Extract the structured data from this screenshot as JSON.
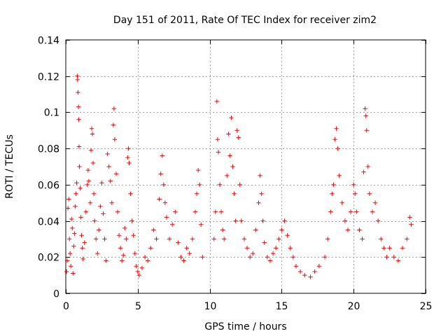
{
  "chart_data": {
    "type": "scatter",
    "title": "Day 151 of 2011, Rate Of TEC Index for receiver zim2",
    "xlabel": "GPS time / hours",
    "ylabel": "ROTI / TECUs",
    "xlim": [
      0,
      25
    ],
    "ylim": [
      0,
      0.14
    ],
    "xticks": [
      0,
      5,
      10,
      15,
      20,
      25
    ],
    "xtick_labels": [
      "0",
      "5",
      "10",
      "15",
      "20",
      "25"
    ],
    "yticks": [
      0,
      0.02,
      0.04,
      0.06,
      0.08,
      0.1,
      0.12,
      0.14
    ],
    "ytick_labels": [
      "0",
      "0.02",
      "0.04",
      "0.06",
      "0.08",
      "0.1",
      "0.12",
      "0.14"
    ],
    "grid": true,
    "marker": "+",
    "color": "#ff0000",
    "series": [
      {
        "name": "ROTI",
        "points": [
          [
            0.05,
            0.012
          ],
          [
            0.1,
            0.018
          ],
          [
            0.15,
            0.047
          ],
          [
            0.2,
            0.052
          ],
          [
            0.25,
            0.03
          ],
          [
            0.3,
            0.022
          ],
          [
            0.35,
            0.015
          ],
          [
            0.4,
            0.041
          ],
          [
            0.45,
            0.036
          ],
          [
            0.5,
            0.011
          ],
          [
            0.55,
            0.026
          ],
          [
            0.6,
            0.033
          ],
          [
            0.65,
            0.048
          ],
          [
            0.7,
            0.055
          ],
          [
            0.75,
            0.061
          ],
          [
            0.8,
            0.12
          ],
          [
            0.82,
            0.118
          ],
          [
            0.85,
            0.111
          ],
          [
            0.88,
            0.103
          ],
          [
            0.9,
            0.096
          ],
          [
            0.92,
            0.081
          ],
          [
            0.95,
            0.07
          ],
          [
            1.0,
            0.058
          ],
          [
            1.05,
            0.042
          ],
          [
            1.1,
            0.032
          ],
          [
            1.15,
            0.025
          ],
          [
            1.2,
            0.019
          ],
          [
            1.3,
            0.028
          ],
          [
            1.4,
            0.045
          ],
          [
            1.5,
            0.06
          ],
          [
            1.55,
            0.068
          ],
          [
            1.6,
            0.062
          ],
          [
            1.7,
            0.05
          ],
          [
            1.75,
            0.079
          ],
          [
            1.8,
            0.091
          ],
          [
            1.85,
            0.088
          ],
          [
            1.9,
            0.072
          ],
          [
            1.95,
            0.055
          ],
          [
            2.0,
            0.04
          ],
          [
            2.1,
            0.03
          ],
          [
            2.2,
            0.022
          ],
          [
            2.3,
            0.035
          ],
          [
            2.4,
            0.048
          ],
          [
            2.5,
            0.061
          ],
          [
            2.6,
            0.044
          ],
          [
            2.7,
            0.03
          ],
          [
            2.8,
            0.018
          ],
          [
            2.9,
            0.077
          ],
          [
            3.0,
            0.07
          ],
          [
            3.1,
            0.062
          ],
          [
            3.2,
            0.05
          ],
          [
            3.3,
            0.093
          ],
          [
            3.35,
            0.102
          ],
          [
            3.4,
            0.085
          ],
          [
            3.5,
            0.066
          ],
          [
            3.6,
            0.045
          ],
          [
            3.7,
            0.032
          ],
          [
            3.8,
            0.025
          ],
          [
            3.9,
            0.018
          ],
          [
            4.0,
            0.021
          ],
          [
            4.1,
            0.036
          ],
          [
            4.2,
            0.03
          ],
          [
            4.3,
            0.075
          ],
          [
            4.35,
            0.08
          ],
          [
            4.4,
            0.072
          ],
          [
            4.5,
            0.055
          ],
          [
            4.6,
            0.04
          ],
          [
            4.7,
            0.032
          ],
          [
            4.8,
            0.022
          ],
          [
            4.9,
            0.015
          ],
          [
            5.0,
            0.012
          ],
          [
            5.1,
            0.01
          ],
          [
            5.3,
            0.014
          ],
          [
            5.5,
            0.02
          ],
          [
            5.7,
            0.018
          ],
          [
            5.9,
            0.025
          ],
          [
            6.1,
            0.035
          ],
          [
            6.3,
            0.03
          ],
          [
            6.5,
            0.052
          ],
          [
            6.6,
            0.066
          ],
          [
            6.7,
            0.076
          ],
          [
            6.8,
            0.06
          ],
          [
            6.9,
            0.05
          ],
          [
            7.0,
            0.042
          ],
          [
            7.2,
            0.03
          ],
          [
            7.4,
            0.038
          ],
          [
            7.6,
            0.045
          ],
          [
            7.8,
            0.028
          ],
          [
            8.0,
            0.02
          ],
          [
            8.2,
            0.018
          ],
          [
            8.4,
            0.025
          ],
          [
            8.6,
            0.022
          ],
          [
            8.8,
            0.03
          ],
          [
            9.0,
            0.045
          ],
          [
            9.1,
            0.055
          ],
          [
            9.2,
            0.068
          ],
          [
            9.3,
            0.06
          ],
          [
            9.4,
            0.038
          ],
          [
            9.5,
            0.02
          ],
          [
            10.3,
            0.03
          ],
          [
            10.4,
            0.045
          ],
          [
            10.5,
            0.106
          ],
          [
            10.55,
            0.085
          ],
          [
            10.6,
            0.078
          ],
          [
            10.7,
            0.06
          ],
          [
            10.8,
            0.045
          ],
          [
            10.9,
            0.035
          ],
          [
            11.0,
            0.03
          ],
          [
            11.2,
            0.065
          ],
          [
            11.3,
            0.088
          ],
          [
            11.4,
            0.076
          ],
          [
            11.5,
            0.097
          ],
          [
            11.6,
            0.07
          ],
          [
            11.7,
            0.055
          ],
          [
            11.8,
            0.04
          ],
          [
            11.9,
            0.09
          ],
          [
            12.0,
            0.086
          ],
          [
            12.1,
            0.06
          ],
          [
            12.2,
            0.04
          ],
          [
            12.4,
            0.03
          ],
          [
            12.6,
            0.025
          ],
          [
            12.8,
            0.02
          ],
          [
            13.0,
            0.022
          ],
          [
            13.2,
            0.035
          ],
          [
            13.4,
            0.05
          ],
          [
            13.5,
            0.065
          ],
          [
            13.6,
            0.055
          ],
          [
            13.7,
            0.04
          ],
          [
            13.8,
            0.028
          ],
          [
            14.0,
            0.02
          ],
          [
            14.2,
            0.018
          ],
          [
            14.4,
            0.022
          ],
          [
            14.6,
            0.025
          ],
          [
            14.8,
            0.03
          ],
          [
            15.0,
            0.035
          ],
          [
            15.2,
            0.04
          ],
          [
            15.4,
            0.032
          ],
          [
            15.6,
            0.025
          ],
          [
            15.8,
            0.02
          ],
          [
            16.0,
            0.015
          ],
          [
            16.3,
            0.012
          ],
          [
            16.6,
            0.01
          ],
          [
            17.0,
            0.009
          ],
          [
            17.3,
            0.012
          ],
          [
            17.6,
            0.015
          ],
          [
            18.0,
            0.02
          ],
          [
            18.2,
            0.03
          ],
          [
            18.4,
            0.045
          ],
          [
            18.5,
            0.055
          ],
          [
            18.6,
            0.06
          ],
          [
            18.7,
            0.085
          ],
          [
            18.8,
            0.091
          ],
          [
            18.9,
            0.08
          ],
          [
            19.0,
            0.065
          ],
          [
            19.2,
            0.05
          ],
          [
            19.4,
            0.04
          ],
          [
            19.6,
            0.035
          ],
          [
            19.8,
            0.045
          ],
          [
            20.0,
            0.06
          ],
          [
            20.1,
            0.055
          ],
          [
            20.2,
            0.045
          ],
          [
            20.4,
            0.035
          ],
          [
            20.6,
            0.03
          ],
          [
            20.7,
            0.067
          ],
          [
            20.8,
            0.102
          ],
          [
            20.85,
            0.098
          ],
          [
            20.9,
            0.09
          ],
          [
            21.0,
            0.07
          ],
          [
            21.1,
            0.055
          ],
          [
            21.3,
            0.045
          ],
          [
            21.5,
            0.05
          ],
          [
            21.7,
            0.04
          ],
          [
            21.9,
            0.03
          ],
          [
            22.1,
            0.025
          ],
          [
            22.3,
            0.02
          ],
          [
            22.5,
            0.025
          ],
          [
            22.8,
            0.02
          ],
          [
            23.1,
            0.018
          ],
          [
            23.4,
            0.025
          ],
          [
            23.7,
            0.03
          ],
          [
            23.9,
            0.042
          ],
          [
            24.0,
            0.038
          ]
        ]
      }
    ]
  }
}
